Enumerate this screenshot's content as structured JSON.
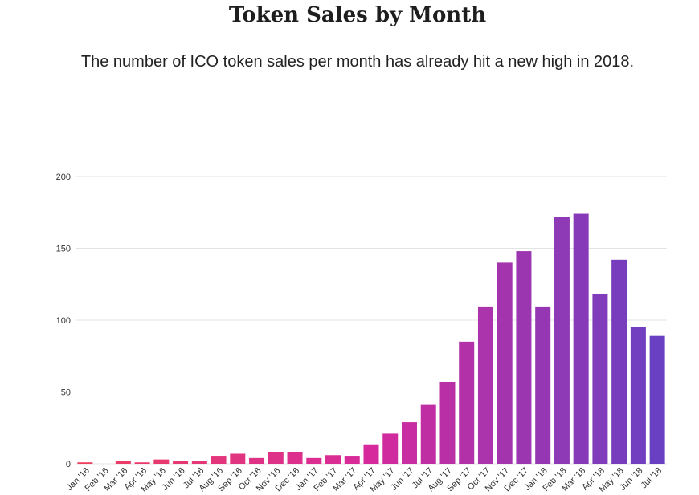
{
  "header": {
    "title": "Token Sales by Month",
    "subtitle": "The number of ICO token sales per month has already hit a new high in 2018."
  },
  "colors": {
    "gradient_start": "#ee3f5f",
    "gradient_mid": "#d62a9c",
    "gradient_end": "#6a40c2",
    "grid": "#e3e3e3",
    "axis_text": "#333333"
  },
  "chart_data": {
    "type": "bar",
    "title": "Token Sales by Month",
    "subtitle": "The number of ICO token sales per month has already hit a new high in 2018.",
    "xlabel": "",
    "ylabel": "",
    "ylim": [
      0,
      200
    ],
    "yticks": [
      0,
      50,
      100,
      150,
      200
    ],
    "grid": true,
    "legend": "none",
    "categories": [
      "Jan '16",
      "Feb '16",
      "Mar '16",
      "Apr '16",
      "May '16",
      "Jun '16",
      "Jul '16",
      "Aug '16",
      "Sep '16",
      "Oct '16",
      "Nov '16",
      "Dec '16",
      "Jan '17",
      "Feb '17",
      "Mar '17",
      "Apr '17",
      "May '17",
      "Jun '17",
      "Jul '17",
      "Aug '17",
      "Sep '17",
      "Oct '17",
      "Nov '17",
      "Dec '17",
      "Jan '18",
      "Feb '18",
      "Mar '18",
      "Apr '18",
      "May '18",
      "Jun '18",
      "Jul '18"
    ],
    "values": [
      1,
      0,
      2,
      1,
      3,
      2,
      2,
      5,
      7,
      4,
      8,
      8,
      4,
      6,
      5,
      13,
      21,
      29,
      41,
      57,
      85,
      109,
      140,
      148,
      109,
      172,
      174,
      118,
      142,
      95,
      89
    ]
  }
}
